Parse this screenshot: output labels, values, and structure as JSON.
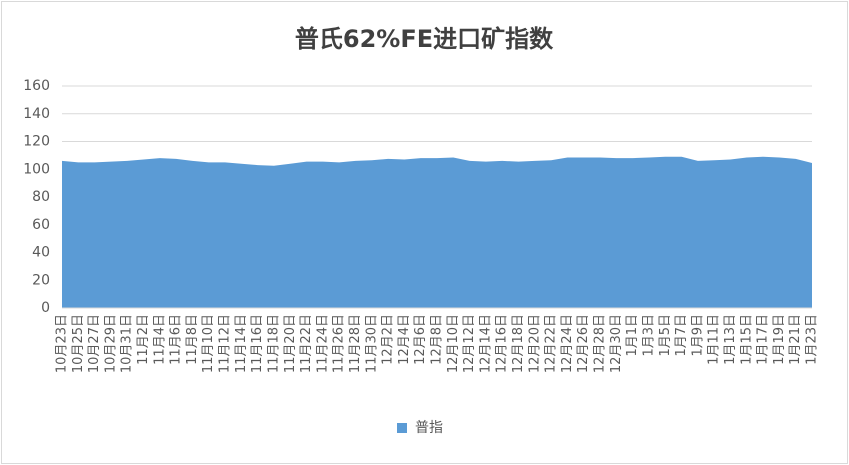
{
  "chart_data": {
    "type": "area",
    "title": "普氏62%FE进口矿指数",
    "categories": [
      "10月23日",
      "10月25日",
      "10月27日",
      "10月29日",
      "10月31日",
      "11月2日",
      "11月4日",
      "11月6日",
      "11月8日",
      "11月10日",
      "11月12日",
      "11月14日",
      "11月16日",
      "11月18日",
      "11月20日",
      "11月22日",
      "11月24日",
      "11月26日",
      "11月28日",
      "11月30日",
      "12月2日",
      "12月4日",
      "12月6日",
      "12月8日",
      "12月10日",
      "12月12日",
      "12月14日",
      "12月16日",
      "12月18日",
      "12月20日",
      "12月22日",
      "12月24日",
      "12月26日",
      "12月28日",
      "12月30日",
      "1月1日",
      "1月3日",
      "1月5日",
      "1月7日",
      "1月9日",
      "1月11日",
      "1月13日",
      "1月15日",
      "1月17日",
      "1月19日",
      "1月21日",
      "1月23日"
    ],
    "series": [
      {
        "name": "普指",
        "color": "#5b9bd5",
        "values": [
          106,
          105,
          105,
          105.5,
          106,
          107,
          108,
          107.5,
          106,
          105,
          105,
          104,
          103,
          102.5,
          104,
          105.5,
          105.5,
          105,
          106,
          106.5,
          107.5,
          107,
          108,
          108,
          108.5,
          106,
          105.5,
          106,
          105.5,
          106,
          106.5,
          108.5,
          108.5,
          108.5,
          108,
          108,
          108.5,
          109,
          109,
          106,
          106.5,
          107,
          108.5,
          109,
          108.5,
          107.5,
          104.5
        ]
      }
    ],
    "ylim": [
      0,
      160
    ],
    "yticks": [
      0,
      20,
      40,
      60,
      80,
      100,
      120,
      140,
      160
    ],
    "grid": true,
    "legend": "bottom"
  }
}
